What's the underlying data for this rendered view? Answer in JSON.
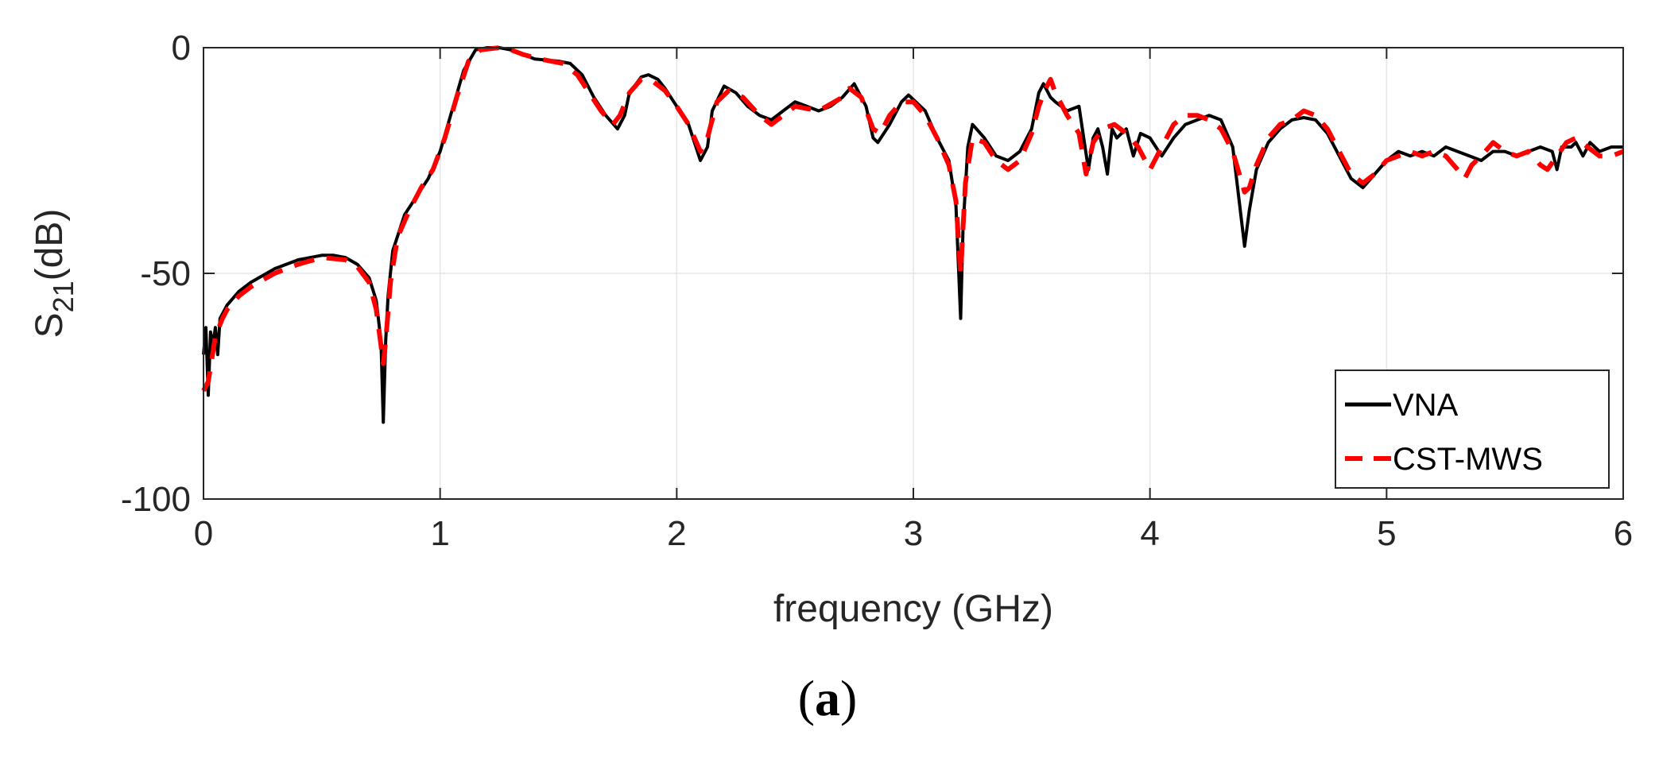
{
  "chart_data": {
    "type": "line",
    "xlabel": "frequency (GHz)",
    "ylabel": {
      "base": "S",
      "subscript": "21",
      "suffix": "(dB)"
    },
    "xlim": [
      0,
      6
    ],
    "ylim": [
      -100,
      0
    ],
    "xticks": [
      0,
      1,
      2,
      3,
      4,
      5,
      6
    ],
    "xtick_labels": [
      "0",
      "1",
      "2",
      "3",
      "4",
      "5",
      "6"
    ],
    "yticks": [
      0,
      -50,
      -100
    ],
    "ytick_labels": [
      "0",
      "-50",
      "-100"
    ],
    "grid": true,
    "legend_position": "bottom-right",
    "series": [
      {
        "name": "VNA",
        "color": "#000000",
        "style": "solid",
        "points": [
          [
            0.0,
            -68
          ],
          [
            0.01,
            -62
          ],
          [
            0.02,
            -77
          ],
          [
            0.03,
            -63
          ],
          [
            0.04,
            -66
          ],
          [
            0.05,
            -62
          ],
          [
            0.06,
            -68
          ],
          [
            0.07,
            -60
          ],
          [
            0.1,
            -57
          ],
          [
            0.15,
            -54
          ],
          [
            0.2,
            -52
          ],
          [
            0.3,
            -49
          ],
          [
            0.4,
            -47
          ],
          [
            0.5,
            -46
          ],
          [
            0.55,
            -46
          ],
          [
            0.6,
            -46.5
          ],
          [
            0.65,
            -48
          ],
          [
            0.7,
            -51
          ],
          [
            0.73,
            -56
          ],
          [
            0.75,
            -65
          ],
          [
            0.76,
            -83
          ],
          [
            0.77,
            -65
          ],
          [
            0.78,
            -55
          ],
          [
            0.8,
            -45
          ],
          [
            0.85,
            -37
          ],
          [
            0.9,
            -33
          ],
          [
            0.95,
            -29
          ],
          [
            1.0,
            -23
          ],
          [
            1.05,
            -14
          ],
          [
            1.1,
            -5
          ],
          [
            1.15,
            -0.5
          ],
          [
            1.2,
            0
          ],
          [
            1.25,
            0
          ],
          [
            1.3,
            -0.5
          ],
          [
            1.35,
            -1.5
          ],
          [
            1.4,
            -2.5
          ],
          [
            1.5,
            -3
          ],
          [
            1.55,
            -3.5
          ],
          [
            1.6,
            -6
          ],
          [
            1.65,
            -11
          ],
          [
            1.7,
            -15
          ],
          [
            1.75,
            -18
          ],
          [
            1.78,
            -15
          ],
          [
            1.8,
            -10
          ],
          [
            1.85,
            -6.5
          ],
          [
            1.88,
            -6
          ],
          [
            1.92,
            -7
          ],
          [
            1.95,
            -9
          ],
          [
            2.0,
            -13
          ],
          [
            2.05,
            -17
          ],
          [
            2.1,
            -25
          ],
          [
            2.13,
            -22
          ],
          [
            2.15,
            -14
          ],
          [
            2.2,
            -8.5
          ],
          [
            2.25,
            -10
          ],
          [
            2.3,
            -13
          ],
          [
            2.35,
            -15
          ],
          [
            2.4,
            -16
          ],
          [
            2.45,
            -14
          ],
          [
            2.5,
            -12
          ],
          [
            2.55,
            -13
          ],
          [
            2.6,
            -14
          ],
          [
            2.65,
            -13
          ],
          [
            2.7,
            -11
          ],
          [
            2.75,
            -8
          ],
          [
            2.8,
            -13
          ],
          [
            2.83,
            -20
          ],
          [
            2.85,
            -21
          ],
          [
            2.9,
            -17
          ],
          [
            2.95,
            -12
          ],
          [
            2.98,
            -10.5
          ],
          [
            3.05,
            -14
          ],
          [
            3.1,
            -20
          ],
          [
            3.15,
            -25
          ],
          [
            3.18,
            -35
          ],
          [
            3.2,
            -60
          ],
          [
            3.21,
            -40
          ],
          [
            3.23,
            -22
          ],
          [
            3.25,
            -17
          ],
          [
            3.3,
            -20
          ],
          [
            3.35,
            -24
          ],
          [
            3.4,
            -25
          ],
          [
            3.45,
            -23
          ],
          [
            3.5,
            -18
          ],
          [
            3.53,
            -10
          ],
          [
            3.55,
            -8
          ],
          [
            3.58,
            -11
          ],
          [
            3.6,
            -12
          ],
          [
            3.65,
            -14
          ],
          [
            3.7,
            -13
          ],
          [
            3.72,
            -20
          ],
          [
            3.74,
            -27
          ],
          [
            3.76,
            -20
          ],
          [
            3.78,
            -18
          ],
          [
            3.8,
            -22
          ],
          [
            3.82,
            -28
          ],
          [
            3.84,
            -18
          ],
          [
            3.86,
            -20
          ],
          [
            3.9,
            -18
          ],
          [
            3.93,
            -24
          ],
          [
            3.96,
            -19
          ],
          [
            4.0,
            -20
          ],
          [
            4.05,
            -24
          ],
          [
            4.1,
            -20
          ],
          [
            4.15,
            -17
          ],
          [
            4.2,
            -16
          ],
          [
            4.25,
            -15
          ],
          [
            4.3,
            -16
          ],
          [
            4.35,
            -22
          ],
          [
            4.4,
            -44
          ],
          [
            4.42,
            -36
          ],
          [
            4.45,
            -27
          ],
          [
            4.5,
            -21
          ],
          [
            4.55,
            -18
          ],
          [
            4.6,
            -16
          ],
          [
            4.65,
            -15.5
          ],
          [
            4.7,
            -16
          ],
          [
            4.75,
            -19
          ],
          [
            4.8,
            -24
          ],
          [
            4.85,
            -29
          ],
          [
            4.9,
            -31
          ],
          [
            4.95,
            -28
          ],
          [
            5.0,
            -25
          ],
          [
            5.05,
            -23
          ],
          [
            5.1,
            -24
          ],
          [
            5.15,
            -23
          ],
          [
            5.2,
            -24
          ],
          [
            5.25,
            -22
          ],
          [
            5.3,
            -23
          ],
          [
            5.35,
            -24
          ],
          [
            5.4,
            -25
          ],
          [
            5.45,
            -23
          ],
          [
            5.5,
            -23
          ],
          [
            5.55,
            -24
          ],
          [
            5.6,
            -23
          ],
          [
            5.65,
            -22
          ],
          [
            5.7,
            -23
          ],
          [
            5.72,
            -27
          ],
          [
            5.74,
            -22
          ],
          [
            5.78,
            -22
          ],
          [
            5.8,
            -21
          ],
          [
            5.83,
            -24
          ],
          [
            5.86,
            -21
          ],
          [
            5.9,
            -23
          ],
          [
            5.95,
            -22
          ],
          [
            6.0,
            -22
          ]
        ]
      },
      {
        "name": "CST-MWS",
        "color": "#ff0000",
        "style": "dashed",
        "points": [
          [
            0.0,
            -76
          ],
          [
            0.02,
            -74
          ],
          [
            0.05,
            -64
          ],
          [
            0.08,
            -60
          ],
          [
            0.1,
            -58
          ],
          [
            0.15,
            -55
          ],
          [
            0.2,
            -53
          ],
          [
            0.3,
            -50
          ],
          [
            0.4,
            -48
          ],
          [
            0.5,
            -46.5
          ],
          [
            0.6,
            -47
          ],
          [
            0.65,
            -48.5
          ],
          [
            0.7,
            -52
          ],
          [
            0.73,
            -58
          ],
          [
            0.75,
            -66
          ],
          [
            0.76,
            -70
          ],
          [
            0.77,
            -65
          ],
          [
            0.79,
            -52
          ],
          [
            0.82,
            -42
          ],
          [
            0.87,
            -36
          ],
          [
            0.92,
            -31
          ],
          [
            0.97,
            -27
          ],
          [
            1.02,
            -20
          ],
          [
            1.07,
            -11
          ],
          [
            1.12,
            -3
          ],
          [
            1.17,
            -0.5
          ],
          [
            1.25,
            0
          ],
          [
            1.3,
            -0.5
          ],
          [
            1.35,
            -1.5
          ],
          [
            1.42,
            -2.5
          ],
          [
            1.52,
            -3.5
          ],
          [
            1.58,
            -6
          ],
          [
            1.63,
            -10
          ],
          [
            1.68,
            -14
          ],
          [
            1.73,
            -17
          ],
          [
            1.76,
            -15
          ],
          [
            1.8,
            -10
          ],
          [
            1.85,
            -7
          ],
          [
            1.9,
            -7.5
          ],
          [
            1.95,
            -9.5
          ],
          [
            2.0,
            -13
          ],
          [
            2.05,
            -17
          ],
          [
            2.1,
            -23
          ],
          [
            2.13,
            -20
          ],
          [
            2.17,
            -12
          ],
          [
            2.22,
            -9.5
          ],
          [
            2.28,
            -11
          ],
          [
            2.35,
            -15
          ],
          [
            2.4,
            -17
          ],
          [
            2.45,
            -15
          ],
          [
            2.5,
            -13
          ],
          [
            2.6,
            -14
          ],
          [
            2.7,
            -11
          ],
          [
            2.73,
            -9
          ],
          [
            2.78,
            -11
          ],
          [
            2.83,
            -18
          ],
          [
            2.86,
            -19
          ],
          [
            2.9,
            -15
          ],
          [
            2.95,
            -12
          ],
          [
            3.0,
            -12
          ],
          [
            3.05,
            -15
          ],
          [
            3.1,
            -20
          ],
          [
            3.15,
            -26
          ],
          [
            3.18,
            -34
          ],
          [
            3.2,
            -50
          ],
          [
            3.22,
            -30
          ],
          [
            3.25,
            -20
          ],
          [
            3.3,
            -21
          ],
          [
            3.35,
            -25
          ],
          [
            3.4,
            -27
          ],
          [
            3.45,
            -25
          ],
          [
            3.5,
            -19
          ],
          [
            3.53,
            -13
          ],
          [
            3.56,
            -9
          ],
          [
            3.58,
            -7
          ],
          [
            3.6,
            -10
          ],
          [
            3.65,
            -15
          ],
          [
            3.7,
            -19
          ],
          [
            3.73,
            -28
          ],
          [
            3.76,
            -21
          ],
          [
            3.8,
            -18
          ],
          [
            3.85,
            -17
          ],
          [
            3.9,
            -19
          ],
          [
            3.95,
            -22
          ],
          [
            4.0,
            -27
          ],
          [
            4.05,
            -22
          ],
          [
            4.1,
            -17
          ],
          [
            4.15,
            -15
          ],
          [
            4.2,
            -15
          ],
          [
            4.25,
            -16
          ],
          [
            4.3,
            -18
          ],
          [
            4.35,
            -23
          ],
          [
            4.4,
            -32
          ],
          [
            4.42,
            -31
          ],
          [
            4.45,
            -26
          ],
          [
            4.5,
            -20
          ],
          [
            4.55,
            -17
          ],
          [
            4.6,
            -16
          ],
          [
            4.65,
            -14
          ],
          [
            4.7,
            -15
          ],
          [
            4.75,
            -18
          ],
          [
            4.8,
            -23
          ],
          [
            4.85,
            -28
          ],
          [
            4.9,
            -30
          ],
          [
            4.95,
            -28
          ],
          [
            5.0,
            -25
          ],
          [
            5.05,
            -24
          ],
          [
            5.1,
            -23
          ],
          [
            5.15,
            -24
          ],
          [
            5.2,
            -23
          ],
          [
            5.25,
            -24
          ],
          [
            5.3,
            -27
          ],
          [
            5.33,
            -29
          ],
          [
            5.36,
            -26
          ],
          [
            5.4,
            -24
          ],
          [
            5.45,
            -21
          ],
          [
            5.5,
            -23
          ],
          [
            5.55,
            -24
          ],
          [
            5.6,
            -23
          ],
          [
            5.65,
            -26
          ],
          [
            5.68,
            -27
          ],
          [
            5.72,
            -24
          ],
          [
            5.76,
            -21
          ],
          [
            5.8,
            -20
          ],
          [
            5.85,
            -22
          ],
          [
            5.9,
            -24
          ],
          [
            5.95,
            -24
          ],
          [
            6.0,
            -23
          ]
        ]
      }
    ]
  },
  "caption": {
    "open": "(",
    "label": "a",
    "close": ")"
  }
}
